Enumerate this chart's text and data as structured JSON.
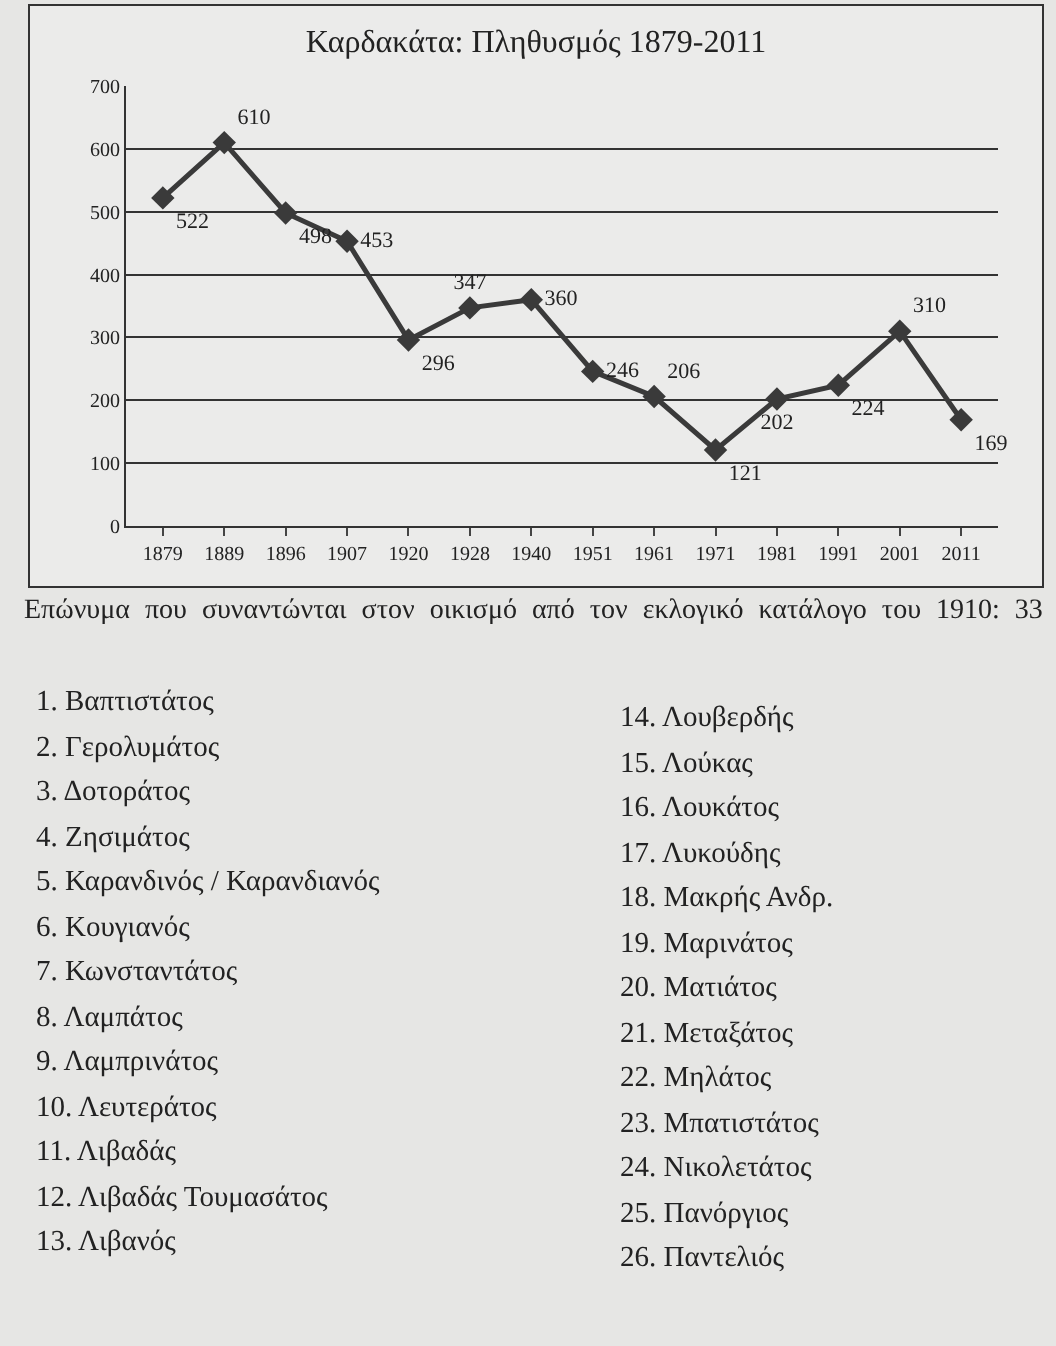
{
  "chart_data": {
    "type": "line",
    "title": "Καρδακάτα: Πληθυσμός 1879-2011",
    "categories": [
      "1879",
      "1889",
      "1896",
      "1907",
      "1920",
      "1928",
      "1940",
      "1951",
      "1961",
      "1971",
      "1981",
      "1991",
      "2001",
      "2011"
    ],
    "values": [
      522,
      610,
      498,
      453,
      296,
      347,
      360,
      246,
      206,
      121,
      202,
      224,
      310,
      169
    ],
    "color": "#3a3a3a",
    "marker": "diamond",
    "line_style": "solid",
    "data_labels": true,
    "grid": "y",
    "ylim": [
      0,
      700
    ],
    "yticks": [
      0,
      100,
      200,
      300,
      400,
      500,
      600,
      700
    ],
    "annotations": [
      "Επώνυμα που συναντώνται στον οικισμό από τον εκλογικό κατάλογο του 1910: 33",
      "1. Βαπτιστάτος",
      "2. Γερολυμάτος",
      "3. Δοτοράτος",
      "4. Ζησιμάτος",
      "5. Καρανδινός / Καρανδιανός",
      "6. Κουγιανός",
      "7. Κωνσταντάτος",
      "8. Λαμπάτος",
      "9. Λαμπρινάτος",
      "10. Λευτεράτος",
      "11. Λιβαδάς",
      "12. Λιβαδάς Τουμασάτος",
      "13. Λιβανός",
      "14. Λουβερδής",
      "15. Λούκας",
      "16. Λουκάτος",
      "17. Λυκούδης",
      "18. Μακρής Ανδρ.",
      "19. Μαρινάτος",
      "20. Ματιάτος",
      "21. Μεταξάτος",
      "22. Μηλάτος",
      "23. Μπατιστάτος",
      "24. Νικολετάτος",
      "25. Πανόργιος",
      "26. Παντελιός"
    ]
  }
}
